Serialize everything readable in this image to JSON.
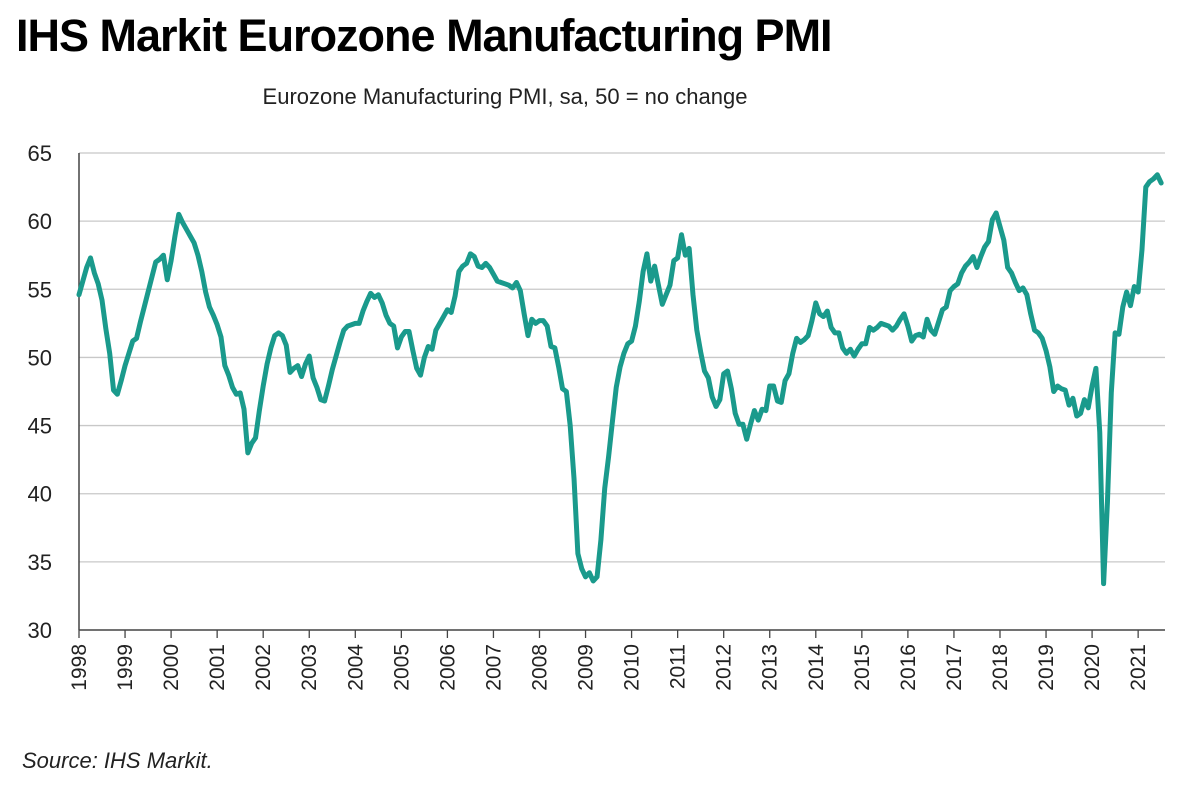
{
  "header": {
    "title": "IHS Markit Eurozone Manufacturing PMI"
  },
  "footer": {
    "source": "Source: IHS Markit."
  },
  "chart_data": {
    "type": "line",
    "title": "IHS Markit Eurozone Manufacturing PMI",
    "subtitle": "Eurozone Manufacturing PMI, sa, 50 = no change",
    "xlabel": "",
    "ylabel": "",
    "ylim": [
      30,
      65
    ],
    "yticks": [
      30,
      35,
      40,
      45,
      50,
      55,
      60,
      65
    ],
    "xlim": [
      "1998-01",
      "2021-08"
    ],
    "xticks": [
      "1998",
      "1999",
      "2000",
      "2001",
      "2002",
      "2003",
      "2004",
      "2005",
      "2006",
      "2007",
      "2008",
      "2009",
      "2010",
      "2011",
      "2012",
      "2013",
      "2014",
      "2015",
      "2016",
      "2017",
      "2018",
      "2019",
      "2020",
      "2021"
    ],
    "grid": "horizontal",
    "legend": "none",
    "line_color": "#1a9a8c",
    "series": [
      {
        "points": [
          [
            "1998-01",
            54.6
          ],
          [
            "1998-02",
            55.6
          ],
          [
            "1998-03",
            56.6
          ],
          [
            "1998-04",
            57.3
          ],
          [
            "1998-05",
            56.2
          ],
          [
            "1998-06",
            55.4
          ],
          [
            "1998-07",
            54.2
          ],
          [
            "1998-08",
            52.1
          ],
          [
            "1998-09",
            50.3
          ],
          [
            "1998-10",
            47.6
          ],
          [
            "1998-11",
            47.3
          ],
          [
            "1998-12",
            48.3
          ],
          [
            "1999-01",
            49.4
          ],
          [
            "1999-02",
            50.3
          ],
          [
            "1999-03",
            51.2
          ],
          [
            "1999-04",
            51.4
          ],
          [
            "1999-05",
            52.6
          ],
          [
            "1999-06",
            53.7
          ],
          [
            "1999-07",
            54.8
          ],
          [
            "1999-08",
            55.9
          ],
          [
            "1999-09",
            57.0
          ],
          [
            "1999-10",
            57.2
          ],
          [
            "1999-11",
            57.5
          ],
          [
            "1999-12",
            55.7
          ],
          [
            "2000-01",
            57.1
          ],
          [
            "2000-02",
            58.9
          ],
          [
            "2000-03",
            60.5
          ],
          [
            "2000-04",
            59.9
          ],
          [
            "2000-05",
            59.4
          ],
          [
            "2000-06",
            58.9
          ],
          [
            "2000-07",
            58.4
          ],
          [
            "2000-08",
            57.5
          ],
          [
            "2000-09",
            56.3
          ],
          [
            "2000-10",
            54.8
          ],
          [
            "2000-11",
            53.7
          ],
          [
            "2000-12",
            53.1
          ],
          [
            "2001-01",
            52.4
          ],
          [
            "2001-02",
            51.5
          ],
          [
            "2001-03",
            49.4
          ],
          [
            "2001-04",
            48.7
          ],
          [
            "2001-05",
            47.8
          ],
          [
            "2001-06",
            47.3
          ],
          [
            "2001-07",
            47.4
          ],
          [
            "2001-08",
            46.2
          ],
          [
            "2001-09",
            43.0
          ],
          [
            "2001-10",
            43.7
          ],
          [
            "2001-11",
            44.1
          ],
          [
            "2001-12",
            46.1
          ],
          [
            "2002-01",
            47.9
          ],
          [
            "2002-02",
            49.5
          ],
          [
            "2002-03",
            50.7
          ],
          [
            "2002-04",
            51.6
          ],
          [
            "2002-05",
            51.8
          ],
          [
            "2002-06",
            51.6
          ],
          [
            "2002-07",
            50.9
          ],
          [
            "2002-08",
            48.9
          ],
          [
            "2002-09",
            49.2
          ],
          [
            "2002-10",
            49.4
          ],
          [
            "2002-11",
            48.6
          ],
          [
            "2002-12",
            49.5
          ],
          [
            "2003-01",
            50.1
          ],
          [
            "2003-02",
            48.5
          ],
          [
            "2003-03",
            47.8
          ],
          [
            "2003-04",
            46.9
          ],
          [
            "2003-05",
            46.8
          ],
          [
            "2003-06",
            47.9
          ],
          [
            "2003-07",
            49.1
          ],
          [
            "2003-08",
            50.1
          ],
          [
            "2003-09",
            51.1
          ],
          [
            "2003-10",
            52.0
          ],
          [
            "2003-11",
            52.3
          ],
          [
            "2003-12",
            52.4
          ],
          [
            "2004-01",
            52.5
          ],
          [
            "2004-02",
            52.5
          ],
          [
            "2004-03",
            53.4
          ],
          [
            "2004-04",
            54.1
          ],
          [
            "2004-05",
            54.7
          ],
          [
            "2004-06",
            54.4
          ],
          [
            "2004-07",
            54.6
          ],
          [
            "2004-08",
            54.0
          ],
          [
            "2004-09",
            53.1
          ],
          [
            "2004-10",
            52.5
          ],
          [
            "2004-11",
            52.3
          ],
          [
            "2004-12",
            50.7
          ],
          [
            "2005-01",
            51.5
          ],
          [
            "2005-02",
            51.9
          ],
          [
            "2005-03",
            51.9
          ],
          [
            "2005-04",
            50.5
          ],
          [
            "2005-05",
            49.2
          ],
          [
            "2005-06",
            48.7
          ],
          [
            "2005-07",
            50.0
          ],
          [
            "2005-08",
            50.8
          ],
          [
            "2005-09",
            50.6
          ],
          [
            "2005-10",
            52.0
          ],
          [
            "2005-11",
            52.5
          ],
          [
            "2005-12",
            53.0
          ],
          [
            "2006-01",
            53.5
          ],
          [
            "2006-02",
            53.3
          ],
          [
            "2006-03",
            54.5
          ],
          [
            "2006-04",
            56.3
          ],
          [
            "2006-05",
            56.7
          ],
          [
            "2006-06",
            56.9
          ],
          [
            "2006-07",
            57.6
          ],
          [
            "2006-08",
            57.4
          ],
          [
            "2006-09",
            56.7
          ],
          [
            "2006-10",
            56.6
          ],
          [
            "2006-11",
            56.9
          ],
          [
            "2006-12",
            56.6
          ],
          [
            "2007-01",
            56.1
          ],
          [
            "2007-02",
            55.6
          ],
          [
            "2007-03",
            55.5
          ],
          [
            "2007-04",
            55.4
          ],
          [
            "2007-05",
            55.3
          ],
          [
            "2007-06",
            55.1
          ],
          [
            "2007-07",
            55.5
          ],
          [
            "2007-08",
            54.9
          ],
          [
            "2007-09",
            53.2
          ],
          [
            "2007-10",
            51.6
          ],
          [
            "2007-11",
            52.8
          ],
          [
            "2007-12",
            52.5
          ],
          [
            "2008-01",
            52.7
          ],
          [
            "2008-02",
            52.7
          ],
          [
            "2008-03",
            52.3
          ],
          [
            "2008-04",
            50.8
          ],
          [
            "2008-05",
            50.7
          ],
          [
            "2008-06",
            49.3
          ],
          [
            "2008-07",
            47.7
          ],
          [
            "2008-08",
            47.5
          ],
          [
            "2008-09",
            45.0
          ],
          [
            "2008-10",
            41.1
          ],
          [
            "2008-11",
            35.6
          ],
          [
            "2008-12",
            34.5
          ],
          [
            "2009-01",
            33.9
          ],
          [
            "2009-02",
            34.2
          ],
          [
            "2009-03",
            33.6
          ],
          [
            "2009-04",
            33.9
          ],
          [
            "2009-05",
            36.6
          ],
          [
            "2009-06",
            40.4
          ],
          [
            "2009-07",
            42.7
          ],
          [
            "2009-08",
            45.3
          ],
          [
            "2009-09",
            47.8
          ],
          [
            "2009-10",
            49.3
          ],
          [
            "2009-11",
            50.3
          ],
          [
            "2009-12",
            51.0
          ],
          [
            "2010-01",
            51.2
          ],
          [
            "2010-02",
            52.3
          ],
          [
            "2010-03",
            54.1
          ],
          [
            "2010-04",
            56.3
          ],
          [
            "2010-05",
            57.6
          ],
          [
            "2010-06",
            55.6
          ],
          [
            "2010-07",
            56.7
          ],
          [
            "2010-08",
            55.3
          ],
          [
            "2010-09",
            53.9
          ],
          [
            "2010-10",
            54.6
          ],
          [
            "2010-11",
            55.3
          ],
          [
            "2010-12",
            57.1
          ],
          [
            "2011-01",
            57.3
          ],
          [
            "2011-02",
            59.0
          ],
          [
            "2011-03",
            57.5
          ],
          [
            "2011-04",
            58.0
          ],
          [
            "2011-05",
            54.6
          ],
          [
            "2011-06",
            52.0
          ],
          [
            "2011-07",
            50.4
          ],
          [
            "2011-08",
            49.0
          ],
          [
            "2011-09",
            48.5
          ],
          [
            "2011-10",
            47.1
          ],
          [
            "2011-11",
            46.4
          ],
          [
            "2011-12",
            46.9
          ],
          [
            "2012-01",
            48.8
          ],
          [
            "2012-02",
            49.0
          ],
          [
            "2012-03",
            47.7
          ],
          [
            "2012-04",
            45.9
          ],
          [
            "2012-05",
            45.1
          ],
          [
            "2012-06",
            45.1
          ],
          [
            "2012-07",
            44.0
          ],
          [
            "2012-08",
            45.1
          ],
          [
            "2012-09",
            46.1
          ],
          [
            "2012-10",
            45.4
          ],
          [
            "2012-11",
            46.2
          ],
          [
            "2012-12",
            46.1
          ],
          [
            "2013-01",
            47.9
          ],
          [
            "2013-02",
            47.9
          ],
          [
            "2013-03",
            46.8
          ],
          [
            "2013-04",
            46.7
          ],
          [
            "2013-05",
            48.3
          ],
          [
            "2013-06",
            48.8
          ],
          [
            "2013-07",
            50.3
          ],
          [
            "2013-08",
            51.4
          ],
          [
            "2013-09",
            51.1
          ],
          [
            "2013-10",
            51.3
          ],
          [
            "2013-11",
            51.6
          ],
          [
            "2013-12",
            52.7
          ],
          [
            "2014-01",
            54.0
          ],
          [
            "2014-02",
            53.2
          ],
          [
            "2014-03",
            53.0
          ],
          [
            "2014-04",
            53.4
          ],
          [
            "2014-05",
            52.2
          ],
          [
            "2014-06",
            51.8
          ],
          [
            "2014-07",
            51.8
          ],
          [
            "2014-08",
            50.7
          ],
          [
            "2014-09",
            50.3
          ],
          [
            "2014-10",
            50.6
          ],
          [
            "2014-11",
            50.1
          ],
          [
            "2014-12",
            50.6
          ],
          [
            "2015-01",
            51.0
          ],
          [
            "2015-02",
            51.0
          ],
          [
            "2015-03",
            52.2
          ],
          [
            "2015-04",
            52.0
          ],
          [
            "2015-05",
            52.2
          ],
          [
            "2015-06",
            52.5
          ],
          [
            "2015-07",
            52.4
          ],
          [
            "2015-08",
            52.3
          ],
          [
            "2015-09",
            52.0
          ],
          [
            "2015-10",
            52.3
          ],
          [
            "2015-11",
            52.8
          ],
          [
            "2015-12",
            53.2
          ],
          [
            "2016-01",
            52.3
          ],
          [
            "2016-02",
            51.2
          ],
          [
            "2016-03",
            51.6
          ],
          [
            "2016-04",
            51.7
          ],
          [
            "2016-05",
            51.5
          ],
          [
            "2016-06",
            52.8
          ],
          [
            "2016-07",
            52.0
          ],
          [
            "2016-08",
            51.7
          ],
          [
            "2016-09",
            52.6
          ],
          [
            "2016-10",
            53.5
          ],
          [
            "2016-11",
            53.7
          ],
          [
            "2016-12",
            54.9
          ],
          [
            "2017-01",
            55.2
          ],
          [
            "2017-02",
            55.4
          ],
          [
            "2017-03",
            56.2
          ],
          [
            "2017-04",
            56.7
          ],
          [
            "2017-05",
            57.0
          ],
          [
            "2017-06",
            57.4
          ],
          [
            "2017-07",
            56.6
          ],
          [
            "2017-08",
            57.4
          ],
          [
            "2017-09",
            58.1
          ],
          [
            "2017-10",
            58.5
          ],
          [
            "2017-11",
            60.1
          ],
          [
            "2017-12",
            60.6
          ],
          [
            "2018-01",
            59.6
          ],
          [
            "2018-02",
            58.6
          ],
          [
            "2018-03",
            56.6
          ],
          [
            "2018-04",
            56.2
          ],
          [
            "2018-05",
            55.5
          ],
          [
            "2018-06",
            54.9
          ],
          [
            "2018-07",
            55.1
          ],
          [
            "2018-08",
            54.6
          ],
          [
            "2018-09",
            53.2
          ],
          [
            "2018-10",
            52.0
          ],
          [
            "2018-11",
            51.8
          ],
          [
            "2018-12",
            51.4
          ],
          [
            "2019-01",
            50.5
          ],
          [
            "2019-02",
            49.3
          ],
          [
            "2019-03",
            47.5
          ],
          [
            "2019-04",
            47.9
          ],
          [
            "2019-05",
            47.7
          ],
          [
            "2019-06",
            47.6
          ],
          [
            "2019-07",
            46.5
          ],
          [
            "2019-08",
            47.0
          ],
          [
            "2019-09",
            45.7
          ],
          [
            "2019-10",
            45.9
          ],
          [
            "2019-11",
            46.9
          ],
          [
            "2019-12",
            46.3
          ],
          [
            "2020-01",
            47.9
          ],
          [
            "2020-02",
            49.2
          ],
          [
            "2020-03",
            44.5
          ],
          [
            "2020-04",
            33.4
          ],
          [
            "2020-05",
            39.4
          ],
          [
            "2020-06",
            47.4
          ],
          [
            "2020-07",
            51.8
          ],
          [
            "2020-08",
            51.7
          ],
          [
            "2020-09",
            53.7
          ],
          [
            "2020-10",
            54.8
          ],
          [
            "2020-11",
            53.8
          ],
          [
            "2020-12",
            55.2
          ],
          [
            "2021-01",
            54.8
          ],
          [
            "2021-02",
            57.9
          ],
          [
            "2021-03",
            62.5
          ],
          [
            "2021-04",
            62.9
          ],
          [
            "2021-05",
            63.1
          ],
          [
            "2021-06",
            63.4
          ],
          [
            "2021-07",
            62.8
          ]
        ]
      }
    ]
  }
}
